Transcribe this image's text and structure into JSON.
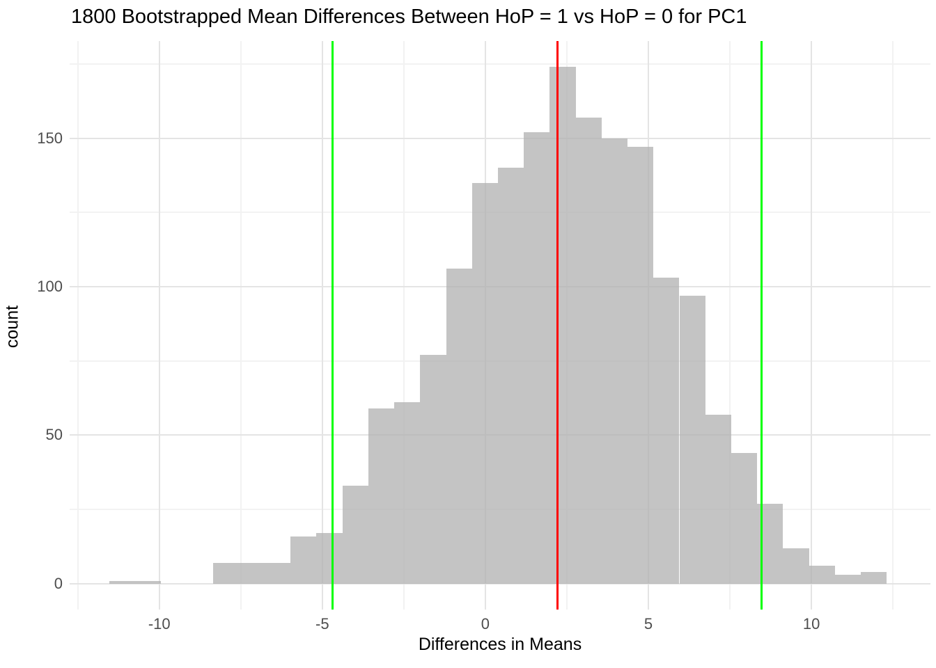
{
  "chart_data": {
    "type": "bar",
    "subtype": "histogram",
    "title": "1800 Bootstrapped Mean Differences Between HoP = 1 vs HoP = 0 for PC1",
    "xlabel": "Differences in Means",
    "ylabel": "count",
    "total_samples": 1800,
    "bin_start": -11.54,
    "binwidth": 0.795,
    "counts": [
      1,
      1,
      0,
      0,
      7,
      7,
      7,
      16,
      17,
      33,
      59,
      61,
      77,
      106,
      135,
      140,
      152,
      174,
      157,
      150,
      147,
      103,
      97,
      57,
      44,
      27,
      12,
      6,
      3,
      4
    ],
    "x_ticks": [
      -10,
      -5,
      0,
      5,
      10
    ],
    "x_minor_ticks": [
      -12.5,
      -7.5,
      -2.5,
      2.5,
      7.5,
      12.5
    ],
    "y_ticks": [
      0,
      50,
      100,
      150
    ],
    "y_minor_ticks": [
      25,
      75,
      125,
      175
    ],
    "xlim": [
      -12.75,
      13.65
    ],
    "ylim": [
      -8.7,
      182.7
    ],
    "grid": true,
    "legend_position": "none",
    "vlines": [
      {
        "x": -4.69,
        "color": "#00FF00",
        "role": "ci-lower-line"
      },
      {
        "x": 2.21,
        "color": "#FF0000",
        "role": "mean-difference-line"
      },
      {
        "x": 8.48,
        "color": "#00FF00",
        "role": "ci-upper-line"
      }
    ],
    "style": {
      "bar_fill": "rgba(175,175,175,0.74)",
      "bar_fill_on_white": "#C3C3C3",
      "grid_major": "#E4E4E4",
      "grid_minor": "#F2F2F2",
      "background": "#FFFFFF",
      "tick_text_color": "#4D4D4D",
      "title_text_color": "#000000"
    }
  }
}
